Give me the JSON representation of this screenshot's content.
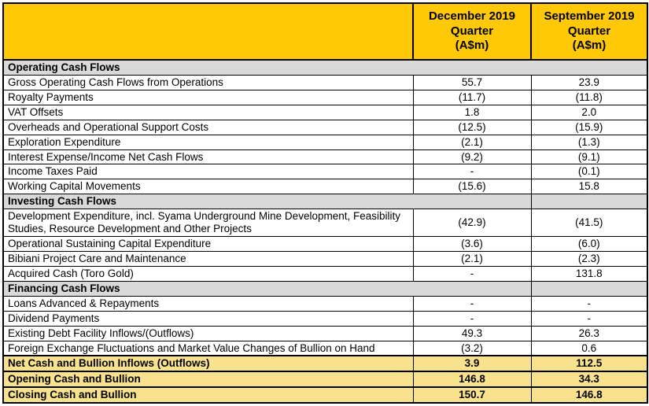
{
  "colors": {
    "header_background": "#FFC907",
    "section_background": "#D9D9D9",
    "total_background": "#F9E28E",
    "border": "#000000",
    "text": "#000000"
  },
  "table": {
    "header": {
      "label_col": "",
      "col_december": "December 2019\nQuarter\n(A$m)",
      "col_september": "September 2019\nQuarter\n(A$m)"
    },
    "rows": [
      {
        "type": "section",
        "label": "Operating Cash Flows",
        "merge_all": true
      },
      {
        "type": "data",
        "label": "Gross Operating Cash Flows from Operations",
        "dec": "55.7",
        "sep": "23.9"
      },
      {
        "type": "data",
        "label": "Royalty Payments",
        "dec": "(11.7)",
        "sep": "(11.8)"
      },
      {
        "type": "data",
        "label": "VAT Offsets",
        "dec": "1.8",
        "sep": "2.0"
      },
      {
        "type": "data",
        "label": "Overheads and Operational Support Costs",
        "dec": "(12.5)",
        "sep": "(15.9)"
      },
      {
        "type": "data",
        "label": "Exploration Expenditure",
        "dec": "(2.1)",
        "sep": "(1.3)"
      },
      {
        "type": "data",
        "label": "Interest Expense/Income Net Cash Flows",
        "dec": "(9.2)",
        "sep": "(9.1)"
      },
      {
        "type": "data",
        "label": "Income Taxes Paid",
        "dec": "-",
        "sep": "(0.1)"
      },
      {
        "type": "data",
        "label": "Working Capital Movements",
        "dec": "(15.6)",
        "sep": "15.8"
      },
      {
        "type": "section",
        "label": "Investing Cash Flows",
        "merge_all": false
      },
      {
        "type": "data",
        "label": "Development Expenditure, incl. Syama Underground Mine Development, Feasibility Studies, Resource Development and Other Projects",
        "dec": "(42.9)",
        "sep": "(41.5)"
      },
      {
        "type": "data",
        "label": "Operational Sustaining Capital Expenditure",
        "dec": "(3.6)",
        "sep": "(6.0)"
      },
      {
        "type": "data",
        "label": "Bibiani Project Care and Maintenance",
        "dec": "(2.1)",
        "sep": "(2.3)"
      },
      {
        "type": "data",
        "label": "Acquired Cash (Toro Gold)",
        "dec": "-",
        "sep": "131.8"
      },
      {
        "type": "section",
        "label": "Financing Cash Flows",
        "merge_all": false
      },
      {
        "type": "data",
        "label": "Loans Advanced & Repayments",
        "dec": "-",
        "sep": "-"
      },
      {
        "type": "data",
        "label": "Dividend Payments",
        "dec": "-",
        "sep": "-"
      },
      {
        "type": "data",
        "label": "Existing Debt Facility Inflows/(Outflows)",
        "dec": "49.3",
        "sep": "26.3"
      },
      {
        "type": "data",
        "label": "Foreign Exchange Fluctuations and Market Value Changes of Bullion on Hand",
        "dec": "(3.2)",
        "sep": "0.6"
      },
      {
        "type": "total",
        "label": "Net Cash and Bullion Inflows (Outflows)",
        "dec": "3.9",
        "sep": "112.5"
      },
      {
        "type": "total",
        "label": "Opening Cash and Bullion",
        "dec": "146.8",
        "sep": "34.3"
      },
      {
        "type": "total",
        "label": "Closing Cash and Bullion",
        "dec": "150.7",
        "sep": "146.8"
      }
    ]
  }
}
